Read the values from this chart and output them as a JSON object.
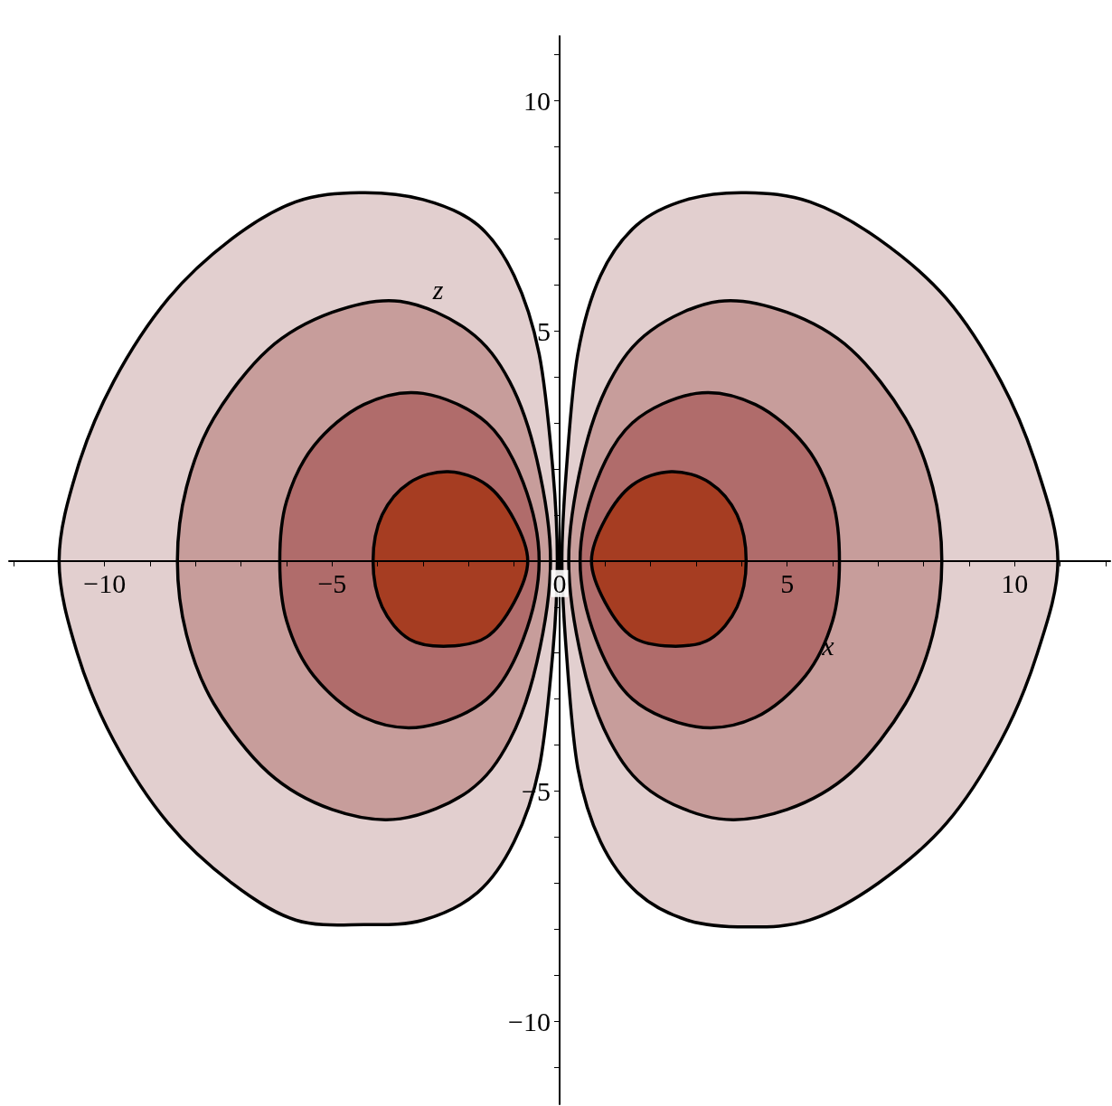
{
  "chart_data": {
    "type": "area",
    "xlabel": "x",
    "ylabel": "z",
    "xlim": [
      -12.1,
      12.1
    ],
    "ylim": [
      -11.8,
      11.4
    ],
    "xticks": [
      {
        "value": -12,
        "label": null
      },
      {
        "value": -11,
        "label": null
      },
      {
        "value": -10,
        "label": "−10"
      },
      {
        "value": -9,
        "label": null
      },
      {
        "value": -8,
        "label": null
      },
      {
        "value": -7,
        "label": null
      },
      {
        "value": -6,
        "label": null
      },
      {
        "value": -5,
        "label": "−5"
      },
      {
        "value": -4,
        "label": null
      },
      {
        "value": -3,
        "label": null
      },
      {
        "value": -2,
        "label": null
      },
      {
        "value": -1,
        "label": null
      },
      0,
      {
        "value": 1,
        "label": null
      },
      {
        "value": 2,
        "label": null
      },
      {
        "value": 3,
        "label": null
      },
      {
        "value": 4,
        "label": null
      },
      5,
      {
        "value": 6,
        "label": null
      },
      {
        "value": 7,
        "label": null
      },
      {
        "value": 8,
        "label": null
      },
      {
        "value": 9,
        "label": null
      },
      10,
      {
        "value": 11,
        "label": null
      },
      {
        "value": 12,
        "label": null
      }
    ],
    "yticks": [
      {
        "value": -11,
        "label": null
      },
      {
        "value": -10,
        "label": "−10"
      },
      {
        "value": -9,
        "label": null
      },
      {
        "value": -8,
        "label": null
      },
      {
        "value": -7,
        "label": null
      },
      {
        "value": -6,
        "label": null
      },
      {
        "value": -5,
        "label": "−5"
      },
      {
        "value": -4,
        "label": null
      },
      {
        "value": -3,
        "label": null
      },
      {
        "value": -2,
        "label": null
      },
      {
        "value": -1,
        "label": null
      },
      {
        "value": 1,
        "label": null
      },
      {
        "value": 2,
        "label": null
      },
      {
        "value": 3,
        "label": null
      },
      {
        "value": 4,
        "label": null
      },
      5,
      {
        "value": 6,
        "label": null
      },
      {
        "value": 7,
        "label": null
      },
      {
        "value": 8,
        "label": null
      },
      {
        "value": 9,
        "label": null
      },
      10,
      {
        "value": 11,
        "label": null
      }
    ],
    "grid": false,
    "series": [
      {
        "color": "#e2cfcf",
        "x": [
          0.05,
          0.15,
          0.4,
          0.9,
          1.7,
          2.8,
          4.1,
          5.5,
          7.0,
          8.5,
          9.7,
          10.5,
          10.95,
          10.5,
          9.7,
          8.5,
          7.0,
          5.5,
          4.1,
          2.8,
          1.7,
          0.9,
          0.4,
          0.15,
          0.05,
          null,
          -0.05,
          -0.15,
          -0.45,
          -1.0,
          -1.8,
          -3.0,
          -4.4,
          -5.8,
          -7.2,
          -8.6,
          -9.8,
          -10.6,
          -11.0,
          -10.6,
          -9.8,
          -8.6,
          -7.2,
          -5.8,
          -4.3,
          -3.0,
          -1.8,
          -1.0,
          -0.45,
          -0.15,
          -0.05
        ],
        "values": [
          0,
          2,
          4.5,
          6.2,
          7.3,
          7.85,
          8.0,
          7.8,
          7.0,
          5.7,
          3.9,
          2.0,
          0,
          -2.0,
          -3.9,
          -5.7,
          -7.0,
          -7.8,
          -7.95,
          -7.8,
          -7.2,
          -6.1,
          -4.5,
          -2,
          0,
          null,
          0,
          2,
          4.5,
          6.2,
          7.3,
          7.85,
          8.0,
          7.8,
          7.0,
          5.7,
          3.9,
          2.0,
          0,
          -2.0,
          -3.9,
          -5.7,
          -7.0,
          -7.8,
          -7.9,
          -7.8,
          -7.2,
          -6.1,
          -4.5,
          -2,
          0
        ]
      },
      {
        "color": "#c79d9b",
        "x": [
          0.2,
          0.5,
          1.1,
          2.0,
          3.5,
          5.0,
          6.4,
          7.6,
          8.2,
          8.4,
          8.2,
          7.6,
          6.4,
          5.0,
          3.5,
          2.0,
          1.1,
          0.5,
          0.2,
          null,
          -0.2,
          -0.5,
          -1.1,
          -2.0,
          -3.5,
          -5.0,
          -6.4,
          -7.6,
          -8.2,
          -8.4,
          -8.2,
          -7.6,
          -6.4,
          -5.0,
          -3.5,
          -2.0,
          -1.1,
          -0.5,
          -0.2
        ],
        "values": [
          0,
          2.2,
          3.9,
          5.0,
          5.64,
          5.4,
          4.6,
          3.1,
          1.6,
          0,
          -1.6,
          -3.1,
          -4.6,
          -5.4,
          -5.6,
          -5.0,
          -3.9,
          -2.2,
          0,
          null,
          0,
          2.2,
          3.9,
          5.0,
          5.64,
          5.4,
          4.6,
          3.1,
          1.6,
          0,
          -1.6,
          -3.1,
          -4.6,
          -5.4,
          -5.6,
          -5.0,
          -3.9,
          -2.2,
          0
        ]
      },
      {
        "color": "#b06c6b",
        "x": [
          0.45,
          0.8,
          1.6,
          3.0,
          4.3,
          5.4,
          6.0,
          6.15,
          6.0,
          5.4,
          4.3,
          3.0,
          1.6,
          0.8,
          0.45,
          null,
          -0.45,
          -0.8,
          -1.6,
          -3.0,
          -4.3,
          -5.4,
          -6.0,
          -6.15,
          -6.0,
          -5.4,
          -4.3,
          -3.0,
          -1.6,
          -0.8,
          -0.45
        ],
        "values": [
          0,
          1.7,
          3.0,
          3.64,
          3.4,
          2.5,
          1.3,
          0,
          -1.3,
          -2.5,
          -3.4,
          -3.6,
          -3.0,
          -1.7,
          0,
          null,
          0,
          1.7,
          3.0,
          3.64,
          3.4,
          2.5,
          1.3,
          0,
          -1.3,
          -2.5,
          -3.4,
          -3.6,
          -3.0,
          -1.7,
          0
        ]
      },
      {
        "color": "#a63d22",
        "x": [
          0.7,
          1.0,
          1.6,
          2.45,
          3.3,
          3.9,
          4.1,
          3.9,
          3.3,
          2.45,
          1.6,
          1.0,
          0.7,
          null,
          -0.7,
          -1.0,
          -1.6,
          -2.45,
          -3.3,
          -3.9,
          -4.1,
          -3.9,
          -3.3,
          -2.45,
          -1.6,
          -1.0,
          -0.7
        ],
        "values": [
          0,
          0.9,
          1.65,
          1.94,
          1.7,
          1.0,
          0,
          -1.0,
          -1.7,
          -1.85,
          -1.65,
          -0.9,
          0,
          null,
          0,
          0.9,
          1.65,
          1.94,
          1.7,
          1.0,
          0,
          -1.0,
          -1.7,
          -1.85,
          -1.65,
          -0.9,
          0
        ]
      }
    ]
  }
}
